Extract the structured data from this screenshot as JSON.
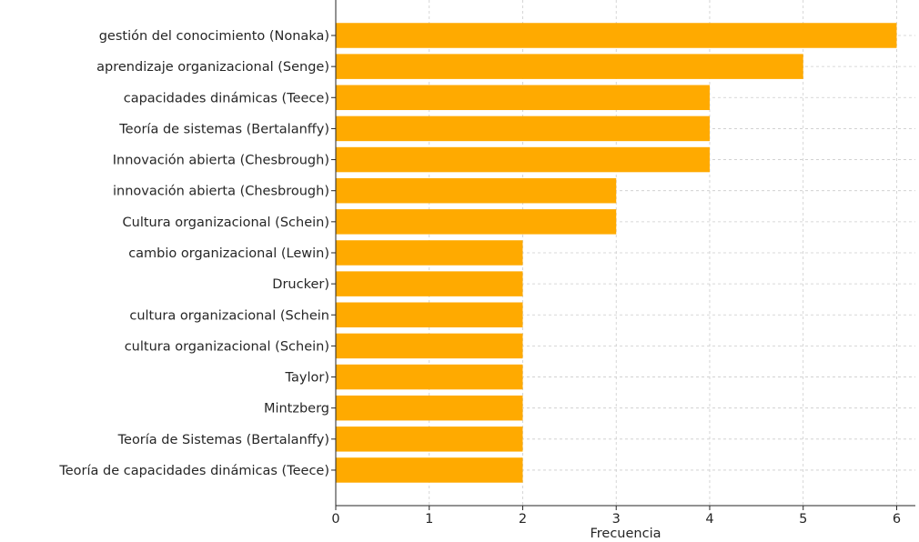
{
  "chart_data": {
    "type": "bar",
    "orientation": "horizontal",
    "categories": [
      "gestión del conocimiento (Nonaka)",
      "aprendizaje organizacional (Senge)",
      "capacidades dinámicas (Teece)",
      "Teoría de sistemas (Bertalanffy)",
      "Innovación abierta (Chesbrough)",
      "innovación abierta (Chesbrough)",
      "Cultura organizacional (Schein)",
      "cambio organizacional (Lewin)",
      "Drucker)",
      "cultura organizacional (Schein",
      "cultura organizacional (Schein)",
      "Taylor)",
      "Mintzberg",
      "Teoría de Sistemas (Bertalanffy)",
      "Teoría de capacidades dinámicas (Teece)"
    ],
    "values": [
      6,
      5,
      4,
      4,
      4,
      3,
      3,
      2,
      2,
      2,
      2,
      2,
      2,
      2,
      2
    ],
    "xlabel": "Frecuencia",
    "ylabel": "",
    "title": "",
    "xlim": [
      0,
      6.2
    ],
    "xticks": [
      0,
      1,
      2,
      3,
      4,
      5,
      6
    ],
    "grid": true,
    "bar_color": "#FFAA00"
  }
}
